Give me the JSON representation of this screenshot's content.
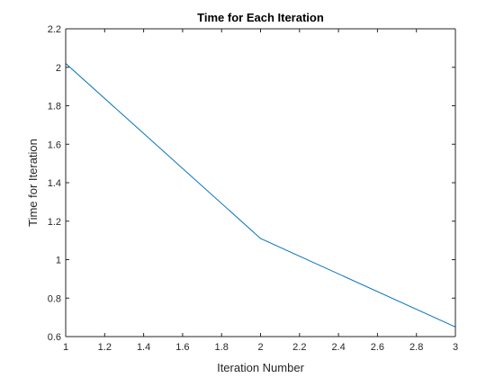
{
  "chart_data": {
    "type": "line",
    "title": "Time for Each Iteration",
    "xlabel": "Iteration Number",
    "ylabel": "Time for Iteration",
    "xlim": [
      1,
      3
    ],
    "ylim": [
      0.6,
      2.2
    ],
    "xticks": [
      1,
      1.2,
      1.4,
      1.6,
      1.8,
      2,
      2.2,
      2.4,
      2.6,
      2.8,
      3
    ],
    "yticks": [
      0.6,
      0.8,
      1,
      1.2,
      1.4,
      1.6,
      1.8,
      2,
      2.2
    ],
    "xtick_labels": [
      "1",
      "1.2",
      "1.4",
      "1.6",
      "1.8",
      "2",
      "2.2",
      "2.4",
      "2.6",
      "2.8",
      "3"
    ],
    "ytick_labels": [
      "0.6",
      "0.8",
      "1",
      "1.2",
      "1.4",
      "1.6",
      "1.8",
      "2",
      "2.2"
    ],
    "grid": false,
    "box": true,
    "series": [
      {
        "x": [
          1,
          2,
          3
        ],
        "y": [
          2.02,
          1.11,
          0.65
        ],
        "color": "#0072BD"
      }
    ]
  }
}
